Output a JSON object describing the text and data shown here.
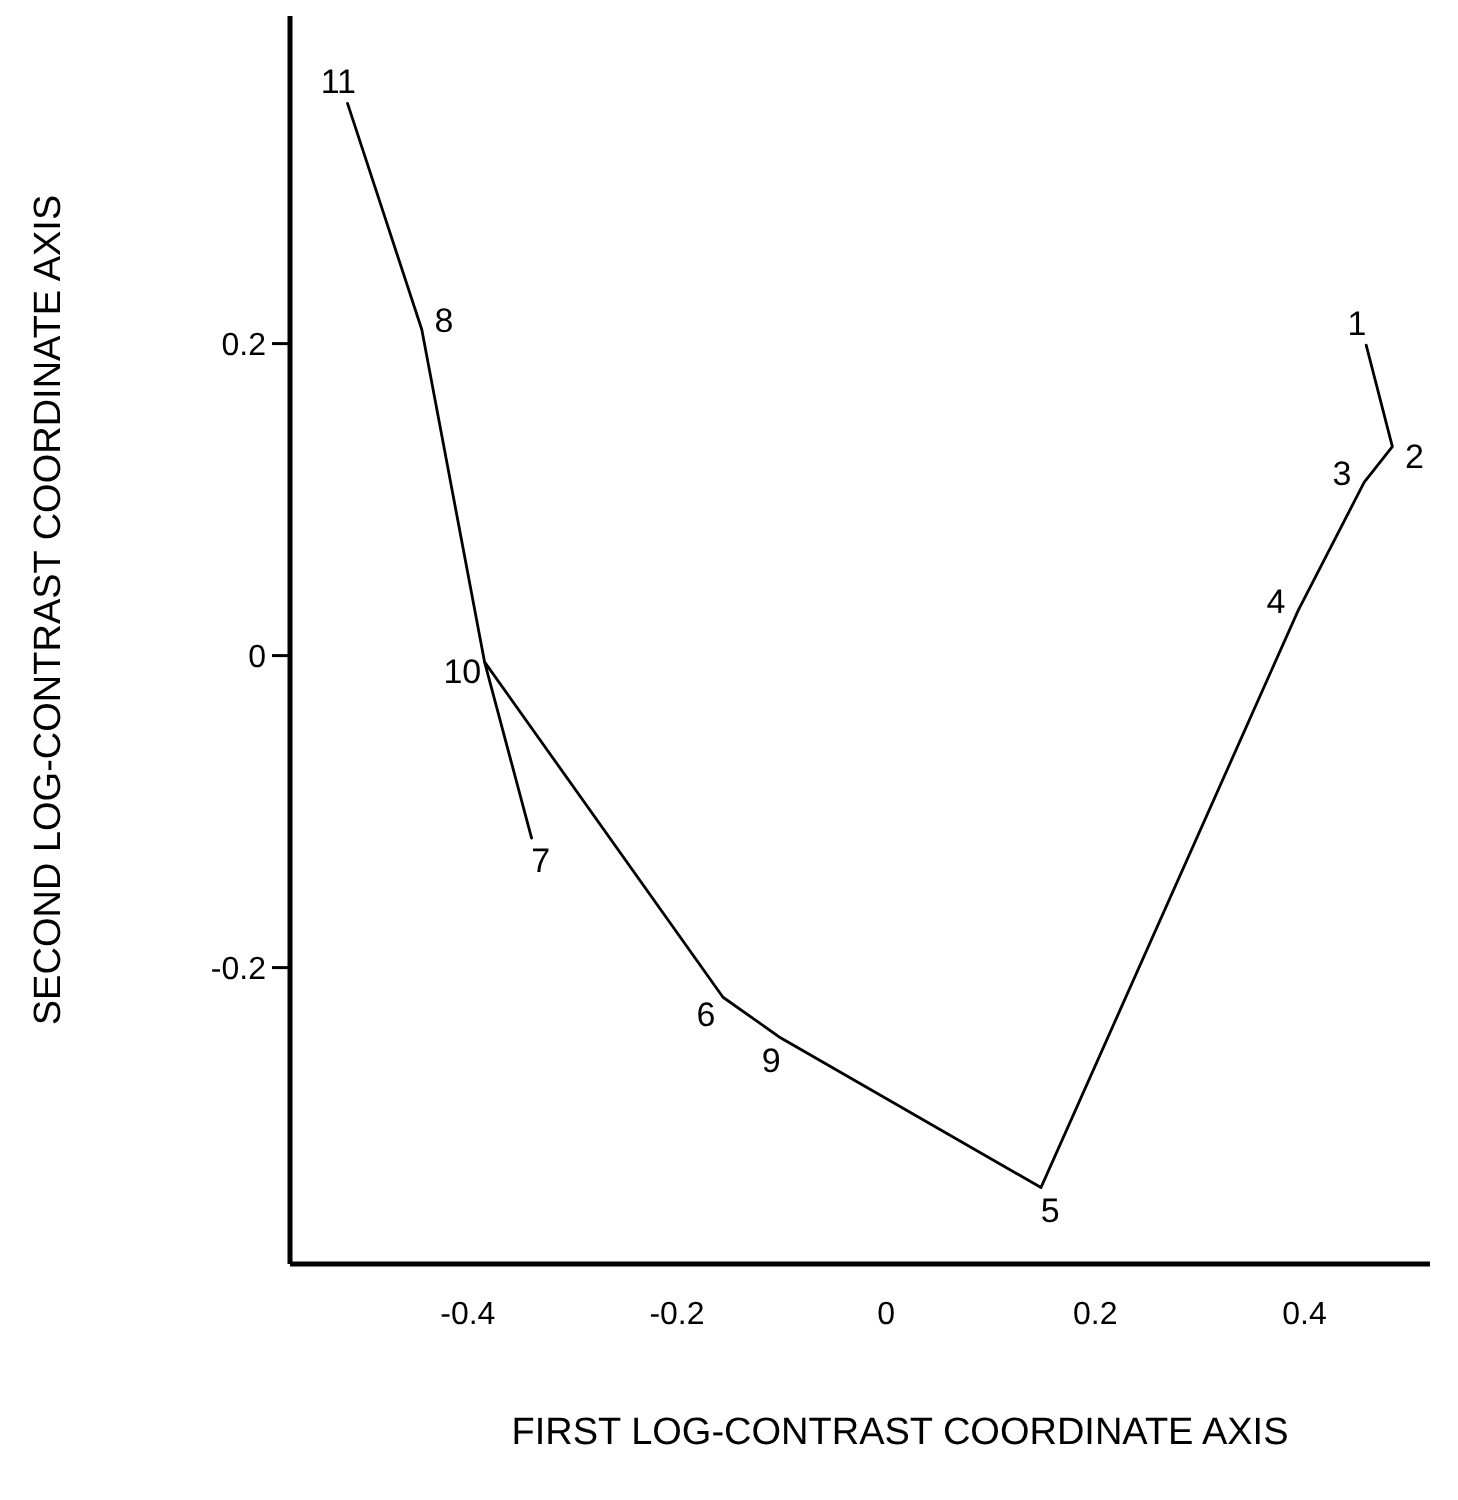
{
  "chart_data": {
    "type": "line",
    "xlabel": "FIRST LOG-CONTRAST COORDINATE AXIS",
    "ylabel": "SECOND LOG-CONTRAST COORDINATE AXIS",
    "xlim": [
      -0.57,
      0.52
    ],
    "ylim": [
      -0.39,
      0.41
    ],
    "xticks": [
      -0.4,
      -0.2,
      0,
      0.2,
      0.4
    ],
    "yticks": [
      -0.2,
      0,
      0.2
    ],
    "grid": false,
    "marker": "none",
    "line_style": "solid",
    "series": [
      {
        "color": "#000000",
        "x": [
          0.459,
          0.484,
          0.457,
          0.394,
          0.148,
          -0.101,
          -0.156,
          -0.384,
          -0.339
        ],
        "values": [
          0.199,
          0.134,
          0.111,
          0.029,
          -0.341,
          -0.245,
          -0.219,
          -0.004,
          -0.117
        ]
      },
      {
        "color": "#000000",
        "x": [
          -0.515,
          -0.444,
          -0.384
        ],
        "values": [
          0.354,
          0.209,
          -0.004
        ]
      }
    ],
    "annotations": [
      {
        "text": "1",
        "x": 0.459,
        "y": 0.199
      },
      {
        "text": "2",
        "x": 0.484,
        "y": 0.134
      },
      {
        "text": "3",
        "x": 0.457,
        "y": 0.111
      },
      {
        "text": "4",
        "x": 0.394,
        "y": 0.029
      },
      {
        "text": "5",
        "x": 0.148,
        "y": -0.341
      },
      {
        "text": "6",
        "x": -0.156,
        "y": -0.219
      },
      {
        "text": "7",
        "x": -0.339,
        "y": -0.117
      },
      {
        "text": "8",
        "x": -0.444,
        "y": 0.209
      },
      {
        "text": "9",
        "x": -0.101,
        "y": -0.245
      },
      {
        "text": "10",
        "x": -0.384,
        "y": -0.004
      },
      {
        "text": "11",
        "x": -0.515,
        "y": 0.354
      }
    ]
  }
}
